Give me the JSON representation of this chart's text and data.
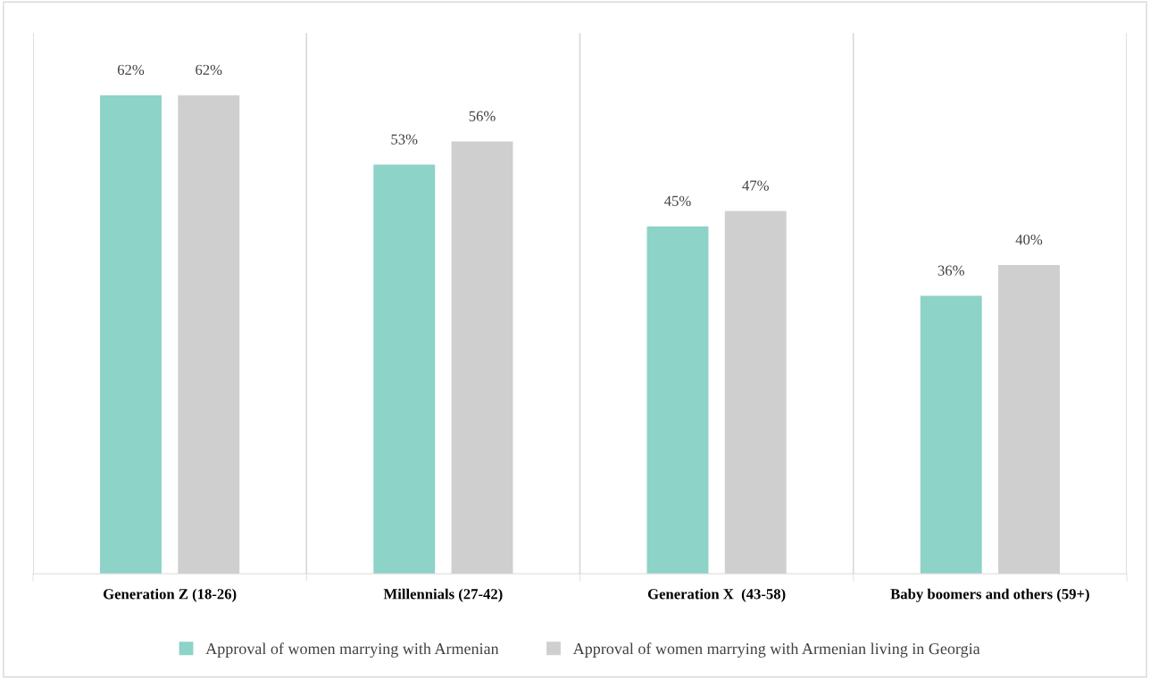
{
  "chart_data": {
    "type": "bar",
    "categories": [
      "Generation Z (18-26)",
      "Millennials (27-42)",
      "Generation X  (43-58)",
      "Baby boomers and others (59+)"
    ],
    "series": [
      {
        "name": "Approval of women marrying with Armenian",
        "color": "#8dd3c7",
        "values": [
          62,
          53,
          45,
          36
        ],
        "value_labels": [
          "62%",
          "53%",
          "45%",
          "36%"
        ]
      },
      {
        "name": "Approval of women marrying with Armenian living in Georgia",
        "color": "#d0cfd0",
        "values": [
          62,
          56,
          47,
          40
        ],
        "value_labels": [
          "62%",
          "56%",
          "47%",
          "40%"
        ]
      }
    ],
    "tick_labels": "x",
    "grid": "x",
    "legend": "bottom"
  }
}
